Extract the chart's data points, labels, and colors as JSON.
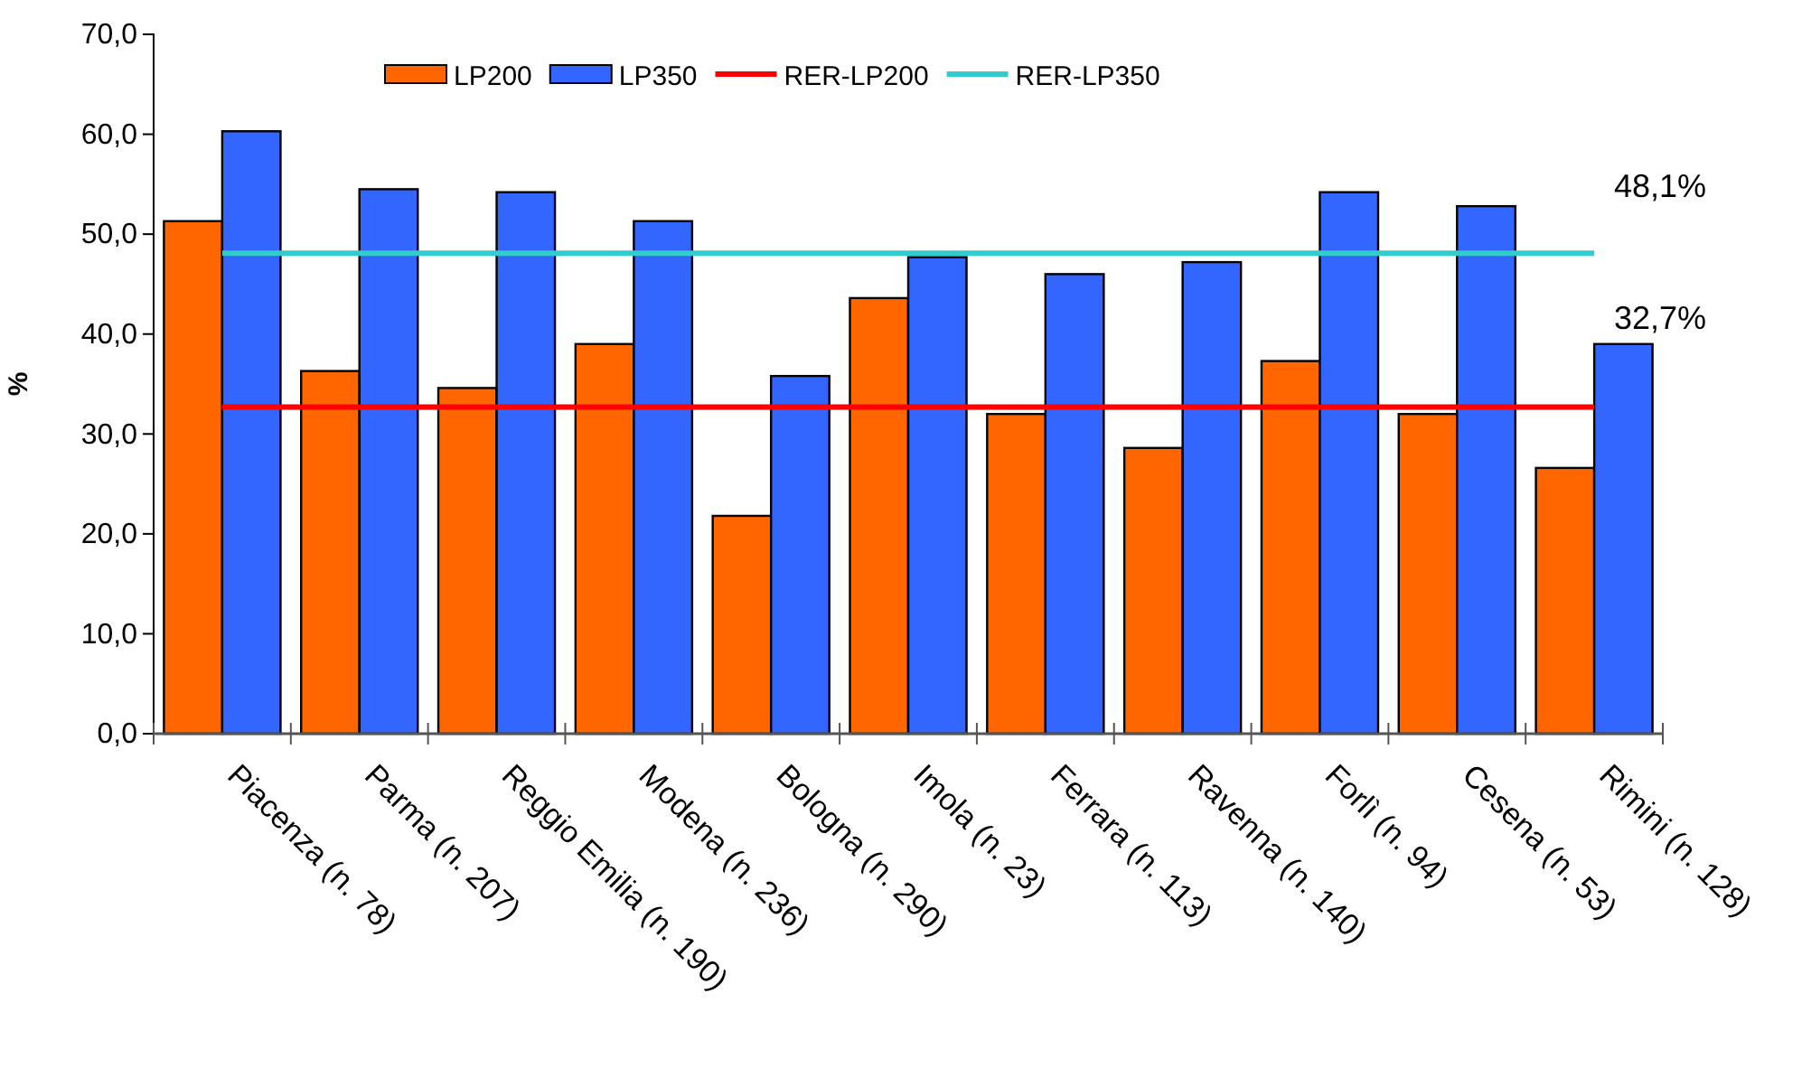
{
  "chart_data": {
    "type": "bar",
    "ylabel": "%",
    "categories": [
      "Piacenza (n. 78)",
      "Parma (n. 207)",
      "Reggio Emilia (n. 190)",
      "Modena (n. 236)",
      "Bologna (n. 290)",
      "Imola (n. 23)",
      "Ferrara (n. 113)",
      "Ravenna (n. 140)",
      "Forlì (n. 94)",
      "Cesena (n. 53)",
      "Rimini (n. 128)"
    ],
    "series": [
      {
        "name": "LP200",
        "color": "#ff6600",
        "values": [
          51.3,
          36.3,
          34.6,
          39.0,
          21.8,
          43.6,
          32.0,
          28.6,
          37.3,
          32.0,
          26.6
        ]
      },
      {
        "name": "LP350",
        "color": "#3366ff",
        "values": [
          60.3,
          54.5,
          54.2,
          51.3,
          35.8,
          47.7,
          46.0,
          47.2,
          54.2,
          52.8,
          39.0
        ]
      },
      {
        "name": "RER-LP200",
        "type": "line",
        "color": "#ff0000",
        "values": [
          32.7,
          32.7,
          32.7,
          32.7,
          32.7,
          32.7,
          32.7,
          32.7,
          32.7,
          32.7,
          32.7
        ]
      },
      {
        "name": "RER-LP350",
        "type": "line",
        "color": "#33cccc",
        "values": [
          48.1,
          48.1,
          48.1,
          48.1,
          48.1,
          48.1,
          48.1,
          48.1,
          48.1,
          48.1,
          48.1
        ]
      }
    ],
    "ylim": [
      0,
      70
    ],
    "yticks": [
      {
        "value": 0,
        "label": "0,0"
      },
      {
        "value": 10,
        "label": "10,0"
      },
      {
        "value": 20,
        "label": "20,0"
      },
      {
        "value": 30,
        "label": "30,0"
      },
      {
        "value": 40,
        "label": "40,0"
      },
      {
        "value": 50,
        "label": "50,0"
      },
      {
        "value": 60,
        "label": "60,0"
      },
      {
        "value": 70,
        "label": "70,0"
      }
    ],
    "annotations": [
      "48,1%",
      "32,7%"
    ],
    "legend": "top",
    "grid": false,
    "marker": "none",
    "line_style": "solid"
  }
}
